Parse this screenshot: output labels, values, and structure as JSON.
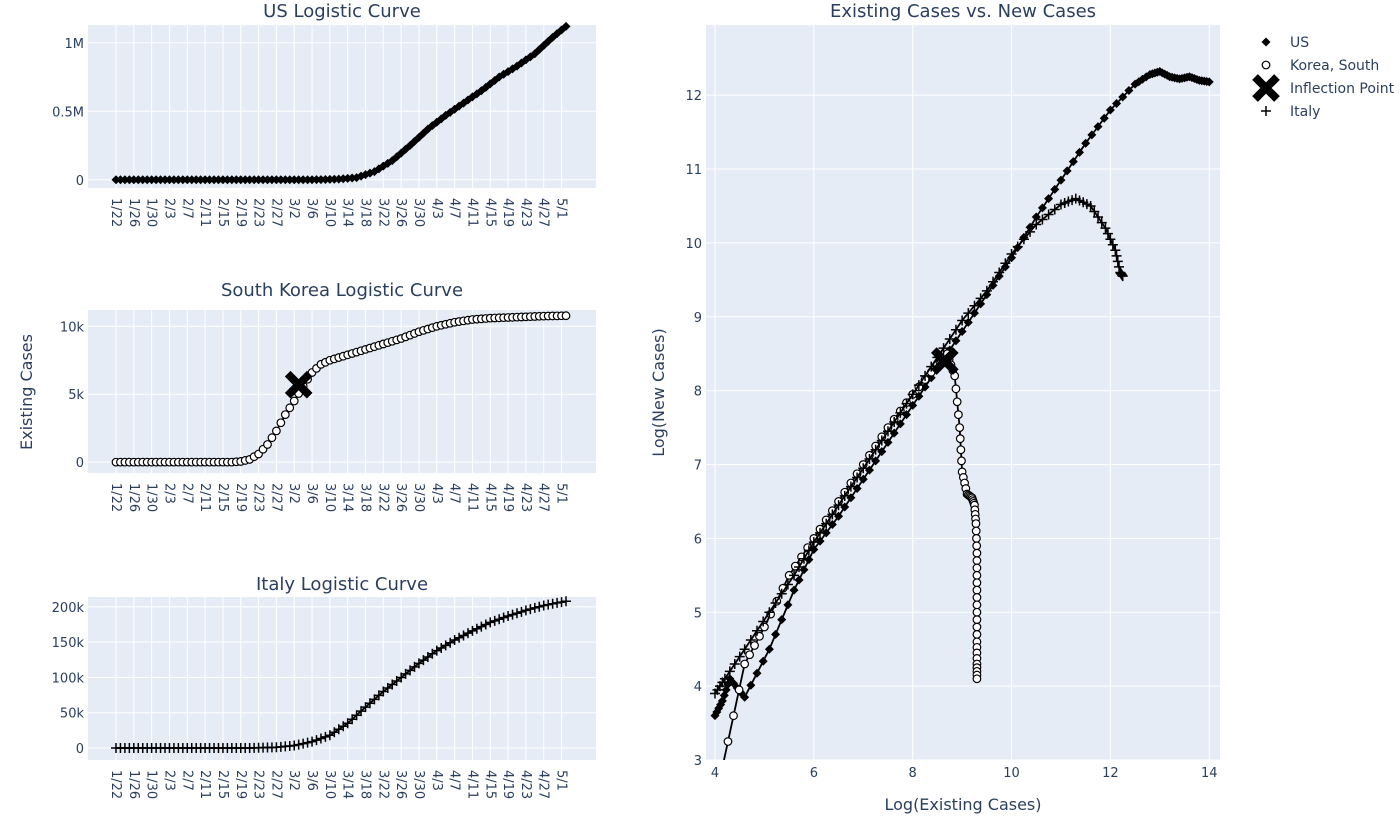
{
  "chart_data": [
    {
      "id": "us",
      "type": "line",
      "title": "US Logistic Curve",
      "marker": "diamond",
      "x_tick_labels": [
        "1/22",
        "1/26",
        "1/30",
        "2/3",
        "2/7",
        "2/11",
        "2/15",
        "2/19",
        "2/23",
        "2/27",
        "3/2",
        "3/6",
        "3/10",
        "3/14",
        "3/18",
        "3/22",
        "3/26",
        "3/30",
        "4/3",
        "4/7",
        "4/11",
        "4/15",
        "4/19",
        "4/23",
        "4/27",
        "5/1"
      ],
      "x_range_days": [
        0,
        101
      ],
      "y_ticks": [
        {
          "value": 0,
          "label": "0"
        },
        {
          "value": 500000,
          "label": "0.5M"
        },
        {
          "value": 1000000,
          "label": "1M"
        }
      ],
      "ylim": [
        -60000,
        1130000
      ],
      "days": [
        0,
        40,
        46,
        50,
        54,
        58,
        62,
        66,
        70,
        74,
        78,
        82,
        86,
        90,
        94,
        98,
        101
      ],
      "values": [
        0,
        0,
        1000,
        5000,
        16000,
        60000,
        140000,
        250000,
        370000,
        470000,
        560000,
        650000,
        750000,
        830000,
        920000,
        1040000,
        1120000
      ]
    },
    {
      "id": "korea",
      "type": "line",
      "title": "South Korea Logistic Curve",
      "marker": "circle-open",
      "y_axis_title": "Existing Cases",
      "x_tick_labels": [
        "1/22",
        "1/26",
        "1/30",
        "2/3",
        "2/7",
        "2/11",
        "2/15",
        "2/19",
        "2/23",
        "2/27",
        "3/2",
        "3/6",
        "3/10",
        "3/14",
        "3/18",
        "3/22",
        "3/26",
        "3/30",
        "4/3",
        "4/7",
        "4/11",
        "4/15",
        "4/19",
        "4/23",
        "4/27",
        "5/1"
      ],
      "x_range_days": [
        0,
        101
      ],
      "y_ticks": [
        {
          "value": 0,
          "label": "0"
        },
        {
          "value": 5000,
          "label": "5k"
        },
        {
          "value": 10000,
          "label": "10k"
        }
      ],
      "ylim": [
        -800,
        11200
      ],
      "days": [
        0,
        26,
        28,
        30,
        32,
        34,
        36,
        38,
        40,
        42,
        44,
        46,
        48,
        52,
        56,
        60,
        64,
        68,
        72,
        76,
        80,
        84,
        88,
        92,
        96,
        101
      ],
      "values": [
        0,
        0,
        50,
        200,
        600,
        1300,
        2300,
        3500,
        4500,
        5600,
        6600,
        7200,
        7500,
        7900,
        8300,
        8700,
        9100,
        9600,
        10000,
        10300,
        10500,
        10600,
        10650,
        10700,
        10750,
        10780
      ],
      "inflection": {
        "day": 41,
        "value": 5700
      }
    },
    {
      "id": "italy",
      "type": "line",
      "title": "Italy Logistic Curve",
      "marker": "cross",
      "x_tick_labels": [
        "1/22",
        "1/26",
        "1/30",
        "2/3",
        "2/7",
        "2/11",
        "2/15",
        "2/19",
        "2/23",
        "2/27",
        "3/2",
        "3/6",
        "3/10",
        "3/14",
        "3/18",
        "3/22",
        "3/26",
        "3/30",
        "4/3",
        "4/7",
        "4/11",
        "4/15",
        "4/19",
        "4/23",
        "4/27",
        "5/1"
      ],
      "x_range_days": [
        0,
        101
      ],
      "y_ticks": [
        {
          "value": 0,
          "label": "0"
        },
        {
          "value": 50000,
          "label": "50k"
        },
        {
          "value": 100000,
          "label": "100k"
        },
        {
          "value": 150000,
          "label": "150k"
        },
        {
          "value": 200000,
          "label": "200k"
        }
      ],
      "ylim": [
        -17000,
        214000
      ],
      "days": [
        0,
        30,
        36,
        40,
        44,
        48,
        52,
        56,
        60,
        64,
        68,
        72,
        76,
        80,
        84,
        88,
        92,
        96,
        101
      ],
      "values": [
        0,
        0,
        1000,
        3500,
        9000,
        18000,
        35000,
        58000,
        80000,
        100000,
        120000,
        138000,
        153000,
        166000,
        178000,
        187000,
        195000,
        202000,
        208000
      ]
    },
    {
      "id": "scatter",
      "type": "scatter",
      "title": "Existing Cases vs. New Cases",
      "xlabel": "Log(Existing Cases)",
      "ylabel": "Log(New Cases)",
      "xlim": [
        4,
        14.4
      ],
      "ylim": [
        3,
        12.95
      ],
      "x_ticks": [
        4,
        6,
        8,
        10,
        12,
        14
      ],
      "y_ticks": [
        3,
        4,
        5,
        6,
        7,
        8,
        9,
        10,
        11,
        12
      ],
      "legend": {
        "placement": "top-right-outside",
        "entries": [
          {
            "label": "US",
            "marker": "diamond"
          },
          {
            "label": "Korea, South",
            "marker": "circle-open"
          },
          {
            "label": "Inflection Point",
            "marker": "x-large"
          },
          {
            "label": "Italy",
            "marker": "cross"
          }
        ]
      },
      "series": [
        {
          "name": "US",
          "marker": "diamond",
          "x": [
            4.0,
            4.15,
            4.3,
            4.6,
            5.1,
            5.6,
            6.0,
            6.5,
            7.0,
            7.5,
            8.0,
            8.5,
            9.0,
            9.5,
            10.0,
            10.5,
            11.0,
            11.5,
            12.0,
            12.5,
            12.8,
            13.0,
            13.2,
            13.4,
            13.6,
            13.8,
            14.0
          ],
          "y": [
            3.6,
            3.8,
            4.1,
            3.85,
            4.5,
            5.3,
            5.85,
            6.3,
            6.8,
            7.3,
            7.8,
            8.3,
            8.8,
            9.3,
            9.8,
            10.35,
            10.85,
            11.35,
            11.8,
            12.15,
            12.28,
            12.32,
            12.25,
            12.22,
            12.25,
            12.2,
            12.18
          ]
        },
        {
          "name": "Korea, South",
          "marker": "circle-open",
          "x": [
            4.15,
            4.6,
            5.0,
            5.5,
            6.0,
            6.5,
            7.0,
            7.5,
            8.0,
            8.5,
            8.7,
            8.85,
            8.95,
            9.0,
            9.1,
            9.2,
            9.25,
            9.28,
            9.3,
            9.3,
            9.3,
            9.3,
            9.3,
            9.3
          ],
          "y": [
            2.9,
            4.3,
            4.8,
            5.5,
            6.0,
            6.5,
            7.0,
            7.5,
            7.95,
            8.35,
            8.5,
            8.2,
            7.5,
            6.9,
            6.6,
            6.55,
            6.45,
            6.2,
            5.8,
            5.4,
            5.0,
            4.6,
            4.3,
            4.1
          ]
        },
        {
          "name": "Italy",
          "marker": "cross",
          "x": [
            4.0,
            4.2,
            4.6,
            5.1,
            5.6,
            6.0,
            6.5,
            7.0,
            7.5,
            8.0,
            8.5,
            9.0,
            9.5,
            10.0,
            10.5,
            11.0,
            11.3,
            11.6,
            11.9,
            12.1,
            12.2,
            12.25
          ],
          "y": [
            3.9,
            4.1,
            4.5,
            5.0,
            5.5,
            5.95,
            6.45,
            6.95,
            7.45,
            7.95,
            8.45,
            8.95,
            9.35,
            9.85,
            10.25,
            10.52,
            10.6,
            10.5,
            10.2,
            9.9,
            9.6,
            9.55
          ]
        }
      ],
      "inflection": {
        "x": 8.65,
        "y": 8.4
      }
    }
  ]
}
